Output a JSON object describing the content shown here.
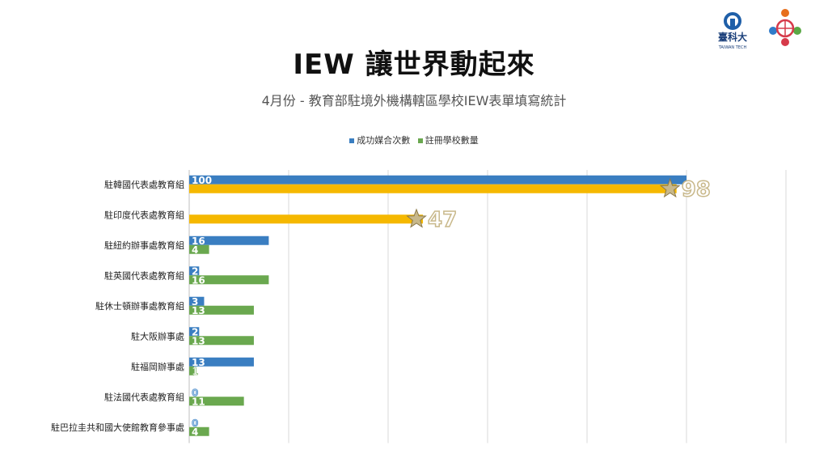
{
  "title": "IEW 讓世界動起來",
  "subtitle": "4月份 - 教育部駐境外機構轄區學校IEW表單填寫統計",
  "logos": {
    "school_name": "臺科大",
    "school_name_en": "TAIWAN TECH"
  },
  "colors": {
    "matches": "#3a7ec1",
    "schools": "#6aa84f",
    "highlight": "#f5b800",
    "star": "#c8b88a"
  },
  "chart_data": {
    "type": "bar",
    "orientation": "horizontal",
    "categories": [
      "駐韓國代表處教育組",
      "駐印度代表處教育組",
      "駐紐約辦事處教育組",
      "駐英國代表處教育組",
      "駐休士頓辦事處教育組",
      "駐大阪辦事處",
      "駐福岡辦事處",
      "駐法國代表處教育組",
      "駐巴拉圭共和國大使館教育參事處"
    ],
    "series": [
      {
        "name": "成功媒合次數",
        "values": [
          100,
          null,
          16,
          2,
          3,
          2,
          13,
          0,
          0
        ]
      },
      {
        "name": "註冊學校數量",
        "values": [
          98,
          47,
          4,
          16,
          13,
          13,
          1,
          11,
          4
        ]
      }
    ],
    "highlighted": [
      {
        "category": "駐韓國代表處教育組",
        "series": "註冊學校數量",
        "label": "98"
      },
      {
        "category": "駐印度代表處教育組",
        "series": "註冊學校數量",
        "label": "47"
      }
    ],
    "xlim": [
      0,
      120
    ],
    "grid": true,
    "legend_position": "top"
  }
}
